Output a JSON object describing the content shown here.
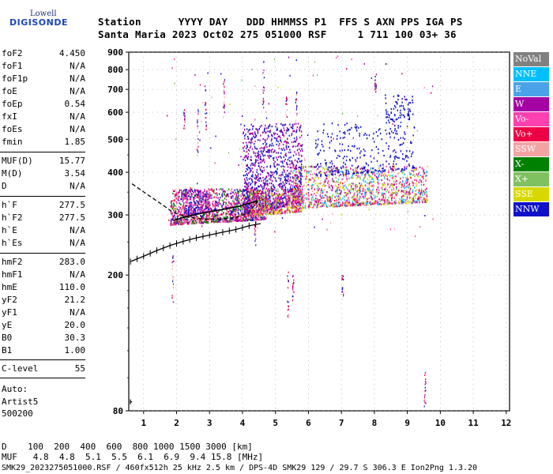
{
  "logo": {
    "top": "Lowell",
    "bottom": "DIGISONDE"
  },
  "header": {
    "labels": "Station      YYYY DAY   DDD HHMMSS P1  FFS S AXN PPS IGA PS",
    "values": "Santa Maria 2023 Oct02 275 051000 RSF     1 711 100 03+ 36"
  },
  "params": [
    {
      "name": "foF2",
      "value": "4.450"
    },
    {
      "name": "foF1",
      "value": "N/A"
    },
    {
      "name": "foF1p",
      "value": "N/A"
    },
    {
      "name": "foE",
      "value": "N/A"
    },
    {
      "name": "foEp",
      "value": "0.54"
    },
    {
      "name": "fxI",
      "value": "N/A"
    },
    {
      "name": "foEs",
      "value": "N/A"
    },
    {
      "name": "fmin",
      "value": "1.85"
    },
    {
      "name": "MUF(D)",
      "value": "15.77"
    },
    {
      "name": "M(D)",
      "value": "3.54"
    },
    {
      "name": "D",
      "value": "N/A"
    },
    {
      "name": "h`F",
      "value": "277.5"
    },
    {
      "name": "h`F2",
      "value": "277.5"
    },
    {
      "name": "h`E",
      "value": "N/A"
    },
    {
      "name": "h`Es",
      "value": "N/A"
    },
    {
      "name": "hmF2",
      "value": "283.0"
    },
    {
      "name": "hmF1",
      "value": "N/A"
    },
    {
      "name": "hmE",
      "value": "110.0"
    },
    {
      "name": "yF2",
      "value": "21.2"
    },
    {
      "name": "yF1",
      "value": "N/A"
    },
    {
      "name": "yE",
      "value": "20.0"
    },
    {
      "name": "B0",
      "value": "30.3"
    },
    {
      "name": "B1",
      "value": "1.00"
    },
    {
      "name": "C-level",
      "value": "55"
    }
  ],
  "auto": {
    "line1": "Auto:",
    "line2": "Artist5",
    "line3": "500200"
  },
  "legend": [
    {
      "label": "NoVal",
      "color": "#808080",
      "text_color": "#ffffff"
    },
    {
      "label": "NNE",
      "color": "#00bfff",
      "text_color": "#ffffff"
    },
    {
      "label": "E",
      "color": "#4aa3e8",
      "text_color": "#ffffff"
    },
    {
      "label": "W",
      "color": "#a400a4",
      "text_color": "#ffffff"
    },
    {
      "label": "Vo-",
      "color": "#ff40b0",
      "text_color": "#ffffff"
    },
    {
      "label": "Vo+",
      "color": "#ee0044",
      "text_color": "#ffffff"
    },
    {
      "label": "SSW",
      "color": "#f4a3a3",
      "text_color": "#ffffff"
    },
    {
      "label": "X-",
      "color": "#008000",
      "text_color": "#ffffff"
    },
    {
      "label": "X+",
      "color": "#7fc060",
      "text_color": "#ffffff"
    },
    {
      "label": "SSE",
      "color": "#d8d800",
      "text_color": "#ffffff"
    },
    {
      "label": "NNW",
      "color": "#1010c8",
      "text_color": "#ffffff"
    }
  ],
  "footer": {
    "d_line": "D    100  200  400  600  800 1000 1500 3000 [km]",
    "muf_line": "MUF   4.8  4.8  5.1  5.5  6.1  6.9  9.4 15.8 [MHz]",
    "info_line": "SMK29_2023275051000.RSF / 460fx512h 25 kHz 2.5 km / DPS-4D SMK29 129 / 29.7 S 306.3 E Ion2Png 1.3.20"
  },
  "chart_data": {
    "type": "scatter",
    "title": "",
    "xlabel": "",
    "ylabel": "",
    "xlim": [
      0.55,
      12.1
    ],
    "ylim": [
      80,
      900
    ],
    "x_ticks": [
      1,
      2,
      3,
      4,
      5,
      6,
      7,
      8,
      9,
      10,
      11,
      12
    ],
    "y_ticks": [
      80,
      200,
      300,
      400,
      500,
      600,
      700,
      800,
      900
    ],
    "y_scale": "log",
    "grid": "dotted",
    "ordinary_trace_O": [
      [
        1.9,
        289
      ],
      [
        2.3,
        297
      ],
      [
        2.8,
        304
      ],
      [
        3.3,
        310
      ],
      [
        3.9,
        318
      ],
      [
        4.45,
        330
      ]
    ],
    "profile_curve": [
      [
        0.65,
        370
      ],
      [
        1.1,
        345
      ],
      [
        1.5,
        325
      ],
      [
        1.9,
        305
      ],
      [
        2.3,
        296
      ],
      [
        2.8,
        292
      ],
      [
        3.3,
        291
      ],
      [
        3.8,
        295
      ],
      [
        4.2,
        305
      ],
      [
        4.45,
        328
      ]
    ],
    "virtual_height_trace": [
      [
        0.6,
        219
      ],
      [
        1.0,
        227
      ],
      [
        1.4,
        236
      ],
      [
        1.8,
        244
      ],
      [
        2.2,
        251
      ],
      [
        2.6,
        257
      ],
      [
        3.0,
        262
      ],
      [
        3.4,
        267
      ],
      [
        3.8,
        272
      ],
      [
        4.2,
        279
      ],
      [
        4.55,
        283
      ]
    ],
    "echo_clusters": [
      {
        "x": [
          1.8,
          4.7
        ],
        "y": [
          282,
          360
        ],
        "count": 1400,
        "colors": [
          "Vo+",
          "Vo-",
          "W",
          "NNW",
          "SSW",
          "X-"
        ]
      },
      {
        "x": [
          2.2,
          3.0
        ],
        "y": [
          300,
          360
        ],
        "count": 250,
        "colors": [
          "W",
          "NNW",
          "Vo-"
        ]
      },
      {
        "x": [
          4.0,
          5.8
        ],
        "y": [
          300,
          560
        ],
        "count": 1100,
        "colors": [
          "NNW",
          "W"
        ]
      },
      {
        "x": [
          4.2,
          5.8
        ],
        "y": [
          300,
          360
        ],
        "count": 500,
        "colors": [
          "Vo+",
          "Vo-",
          "W",
          "X+",
          "SSE"
        ]
      },
      {
        "x": [
          5.5,
          9.6
        ],
        "y": [
          315,
          420
        ],
        "count": 1300,
        "colors": [
          "Vo+",
          "Vo-",
          "W",
          "SSW",
          "X+",
          "SSE",
          "NNE"
        ]
      },
      {
        "x": [
          6.2,
          9.2
        ],
        "y": [
          390,
          560
        ],
        "count": 300,
        "colors": [
          "NNW"
        ]
      },
      {
        "x": [
          8.3,
          9.2
        ],
        "y": [
          560,
          690
        ],
        "count": 80,
        "colors": [
          "NNW"
        ]
      }
    ]
  }
}
